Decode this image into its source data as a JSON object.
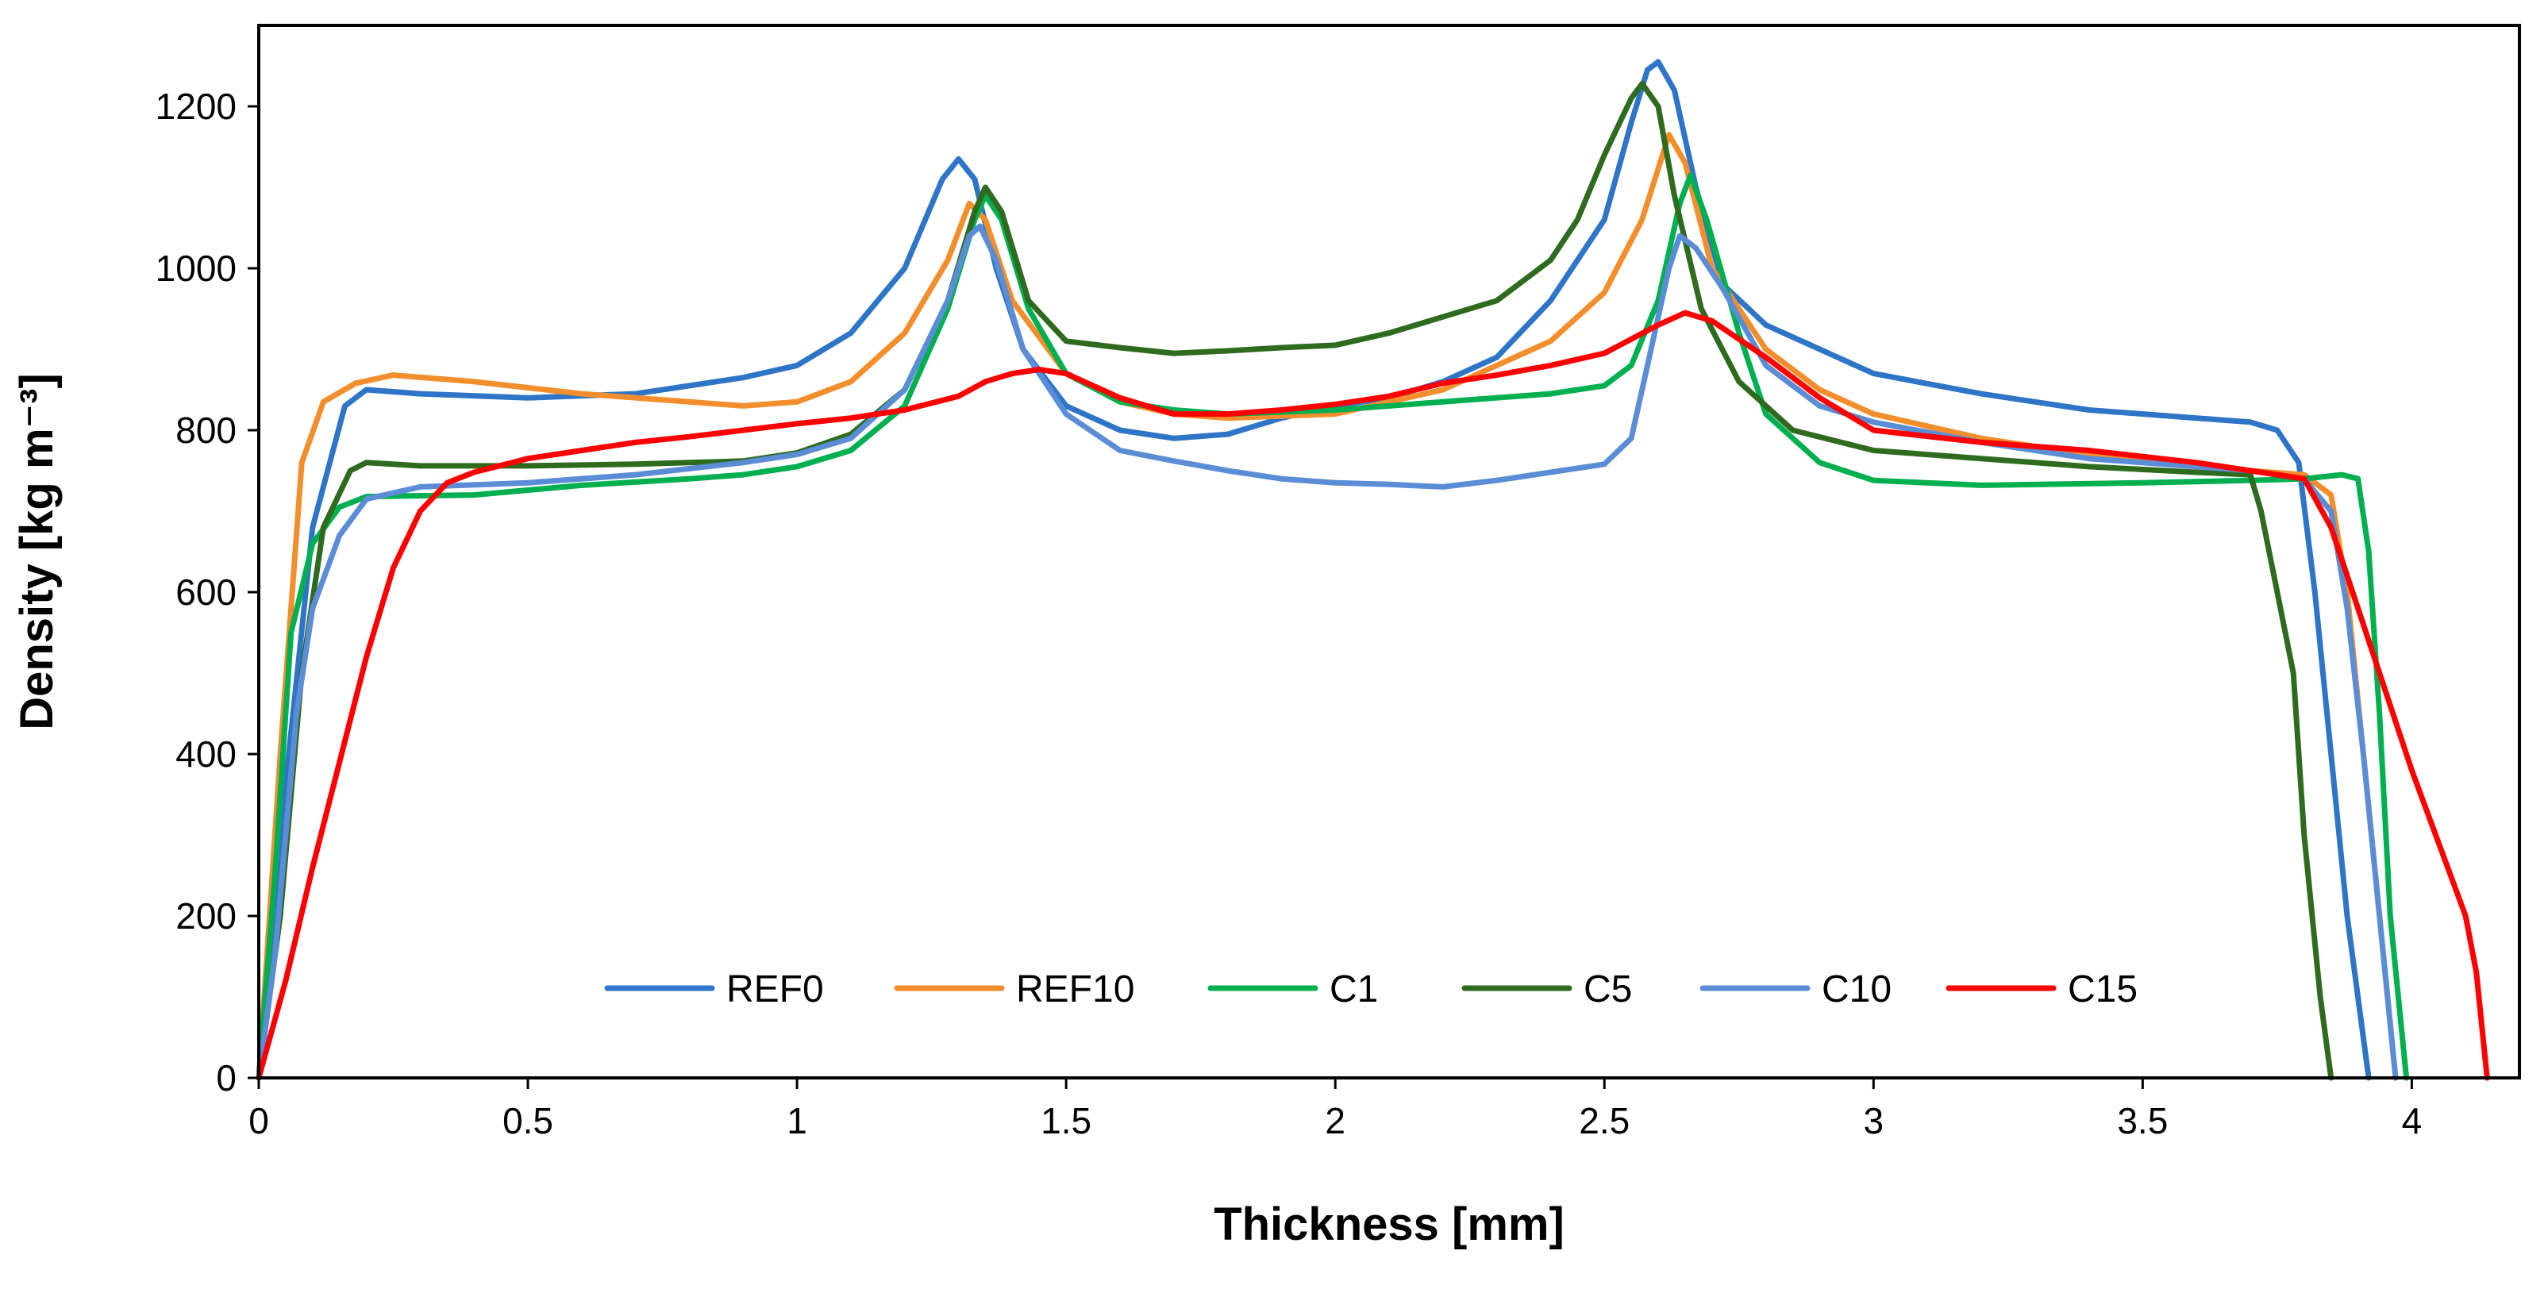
{
  "chart_data": {
    "type": "line",
    "title": "",
    "xlabel": "Thickness [mm]",
    "ylabel": "Density [kg m⁻³]",
    "xlim": [
      0,
      4.2
    ],
    "ylim": [
      0,
      1300
    ],
    "x_ticks": [
      0,
      0.5,
      1,
      1.5,
      2,
      2.5,
      3,
      3.5,
      4
    ],
    "x_tick_labels": [
      "0",
      "0.5",
      "1",
      "1.5",
      "2",
      "2.5",
      "3",
      "3.5",
      "4"
    ],
    "y_ticks": [
      0,
      200,
      400,
      600,
      800,
      1000,
      1200
    ],
    "y_tick_labels": [
      "0",
      "200",
      "400",
      "600",
      "800",
      "1000",
      "1200"
    ],
    "grid": false,
    "legend_position": "bottom-center",
    "series": [
      {
        "name": "REF0",
        "color": "#2E75C8",
        "points": [
          [
            0,
            0
          ],
          [
            0.04,
            300
          ],
          [
            0.1,
            680
          ],
          [
            0.16,
            830
          ],
          [
            0.2,
            850
          ],
          [
            0.3,
            845
          ],
          [
            0.5,
            840
          ],
          [
            0.7,
            845
          ],
          [
            0.9,
            865
          ],
          [
            1.0,
            880
          ],
          [
            1.1,
            920
          ],
          [
            1.2,
            1000
          ],
          [
            1.27,
            1110
          ],
          [
            1.3,
            1135
          ],
          [
            1.33,
            1110
          ],
          [
            1.37,
            1000
          ],
          [
            1.42,
            900
          ],
          [
            1.5,
            830
          ],
          [
            1.6,
            800
          ],
          [
            1.7,
            790
          ],
          [
            1.8,
            795
          ],
          [
            1.9,
            815
          ],
          [
            2.0,
            830
          ],
          [
            2.1,
            840
          ],
          [
            2.2,
            860
          ],
          [
            2.3,
            890
          ],
          [
            2.4,
            960
          ],
          [
            2.5,
            1060
          ],
          [
            2.55,
            1180
          ],
          [
            2.58,
            1245
          ],
          [
            2.6,
            1255
          ],
          [
            2.63,
            1220
          ],
          [
            2.67,
            1100
          ],
          [
            2.72,
            980
          ],
          [
            2.8,
            930
          ],
          [
            2.9,
            900
          ],
          [
            3.0,
            870
          ],
          [
            3.2,
            845
          ],
          [
            3.4,
            825
          ],
          [
            3.6,
            815
          ],
          [
            3.7,
            810
          ],
          [
            3.75,
            800
          ],
          [
            3.79,
            760
          ],
          [
            3.82,
            600
          ],
          [
            3.85,
            400
          ],
          [
            3.88,
            200
          ],
          [
            3.92,
            0
          ]
        ]
      },
      {
        "name": "REF10",
        "color": "#F28E2B",
        "points": [
          [
            0,
            0
          ],
          [
            0.04,
            400
          ],
          [
            0.08,
            760
          ],
          [
            0.12,
            835
          ],
          [
            0.18,
            858
          ],
          [
            0.25,
            868
          ],
          [
            0.4,
            860
          ],
          [
            0.6,
            845
          ],
          [
            0.8,
            835
          ],
          [
            0.9,
            830
          ],
          [
            1.0,
            835
          ],
          [
            1.1,
            860
          ],
          [
            1.2,
            920
          ],
          [
            1.28,
            1010
          ],
          [
            1.32,
            1080
          ],
          [
            1.35,
            1060
          ],
          [
            1.4,
            960
          ],
          [
            1.5,
            870
          ],
          [
            1.6,
            835
          ],
          [
            1.7,
            820
          ],
          [
            1.8,
            815
          ],
          [
            2.0,
            820
          ],
          [
            2.2,
            850
          ],
          [
            2.4,
            910
          ],
          [
            2.5,
            970
          ],
          [
            2.57,
            1060
          ],
          [
            2.62,
            1165
          ],
          [
            2.65,
            1130
          ],
          [
            2.7,
            1000
          ],
          [
            2.8,
            900
          ],
          [
            2.9,
            850
          ],
          [
            3.0,
            820
          ],
          [
            3.2,
            790
          ],
          [
            3.4,
            770
          ],
          [
            3.6,
            755
          ],
          [
            3.7,
            750
          ],
          [
            3.8,
            745
          ],
          [
            3.85,
            720
          ],
          [
            3.88,
            600
          ],
          [
            3.91,
            400
          ],
          [
            3.94,
            200
          ],
          [
            3.97,
            0
          ]
        ]
      },
      {
        "name": "C1",
        "color": "#00B050",
        "points": [
          [
            0,
            0
          ],
          [
            0.03,
            250
          ],
          [
            0.06,
            550
          ],
          [
            0.1,
            660
          ],
          [
            0.15,
            705
          ],
          [
            0.2,
            718
          ],
          [
            0.4,
            720
          ],
          [
            0.6,
            732
          ],
          [
            0.8,
            740
          ],
          [
            0.9,
            745
          ],
          [
            1.0,
            755
          ],
          [
            1.1,
            775
          ],
          [
            1.2,
            830
          ],
          [
            1.28,
            950
          ],
          [
            1.33,
            1060
          ],
          [
            1.35,
            1090
          ],
          [
            1.38,
            1060
          ],
          [
            1.43,
            950
          ],
          [
            1.5,
            870
          ],
          [
            1.6,
            835
          ],
          [
            1.7,
            825
          ],
          [
            1.8,
            820
          ],
          [
            2.0,
            825
          ],
          [
            2.2,
            835
          ],
          [
            2.4,
            845
          ],
          [
            2.5,
            855
          ],
          [
            2.55,
            880
          ],
          [
            2.6,
            960
          ],
          [
            2.64,
            1080
          ],
          [
            2.66,
            1115
          ],
          [
            2.69,
            1060
          ],
          [
            2.75,
            920
          ],
          [
            2.8,
            820
          ],
          [
            2.9,
            760
          ],
          [
            3.0,
            738
          ],
          [
            3.2,
            732
          ],
          [
            3.5,
            735
          ],
          [
            3.7,
            738
          ],
          [
            3.8,
            740
          ],
          [
            3.87,
            745
          ],
          [
            3.9,
            740
          ],
          [
            3.92,
            650
          ],
          [
            3.94,
            450
          ],
          [
            3.96,
            200
          ],
          [
            3.99,
            0
          ]
        ]
      },
      {
        "name": "C5",
        "color": "#2E6B1F",
        "points": [
          [
            0,
            0
          ],
          [
            0.04,
            200
          ],
          [
            0.08,
            500
          ],
          [
            0.12,
            680
          ],
          [
            0.17,
            750
          ],
          [
            0.2,
            760
          ],
          [
            0.3,
            756
          ],
          [
            0.5,
            756
          ],
          [
            0.7,
            758
          ],
          [
            0.9,
            762
          ],
          [
            1.0,
            772
          ],
          [
            1.1,
            795
          ],
          [
            1.2,
            850
          ],
          [
            1.28,
            960
          ],
          [
            1.33,
            1070
          ],
          [
            1.35,
            1100
          ],
          [
            1.38,
            1070
          ],
          [
            1.43,
            960
          ],
          [
            1.5,
            910
          ],
          [
            1.6,
            902
          ],
          [
            1.7,
            895
          ],
          [
            1.8,
            898
          ],
          [
            1.9,
            902
          ],
          [
            2.0,
            905
          ],
          [
            2.1,
            920
          ],
          [
            2.2,
            940
          ],
          [
            2.3,
            960
          ],
          [
            2.4,
            1010
          ],
          [
            2.45,
            1060
          ],
          [
            2.5,
            1140
          ],
          [
            2.55,
            1210
          ],
          [
            2.57,
            1228
          ],
          [
            2.6,
            1200
          ],
          [
            2.63,
            1090
          ],
          [
            2.68,
            950
          ],
          [
            2.75,
            860
          ],
          [
            2.85,
            800
          ],
          [
            3.0,
            775
          ],
          [
            3.2,
            765
          ],
          [
            3.4,
            755
          ],
          [
            3.6,
            748
          ],
          [
            3.7,
            745
          ],
          [
            3.72,
            700
          ],
          [
            3.75,
            600
          ],
          [
            3.78,
            500
          ],
          [
            3.8,
            300
          ],
          [
            3.83,
            100
          ],
          [
            3.85,
            0
          ]
        ]
      },
      {
        "name": "C10",
        "color": "#5B8DD6",
        "points": [
          [
            0,
            0
          ],
          [
            0.03,
            150
          ],
          [
            0.07,
            450
          ],
          [
            0.1,
            580
          ],
          [
            0.15,
            670
          ],
          [
            0.2,
            715
          ],
          [
            0.3,
            730
          ],
          [
            0.5,
            735
          ],
          [
            0.7,
            745
          ],
          [
            0.9,
            760
          ],
          [
            1.0,
            770
          ],
          [
            1.1,
            790
          ],
          [
            1.2,
            850
          ],
          [
            1.28,
            960
          ],
          [
            1.32,
            1040
          ],
          [
            1.34,
            1052
          ],
          [
            1.37,
            1010
          ],
          [
            1.42,
            900
          ],
          [
            1.5,
            820
          ],
          [
            1.6,
            775
          ],
          [
            1.7,
            762
          ],
          [
            1.8,
            750
          ],
          [
            1.9,
            740
          ],
          [
            2.0,
            735
          ],
          [
            2.1,
            733
          ],
          [
            2.2,
            730
          ],
          [
            2.3,
            738
          ],
          [
            2.4,
            748
          ],
          [
            2.5,
            758
          ],
          [
            2.55,
            790
          ],
          [
            2.58,
            880
          ],
          [
            2.62,
            1000
          ],
          [
            2.64,
            1040
          ],
          [
            2.67,
            1025
          ],
          [
            2.72,
            975
          ],
          [
            2.8,
            880
          ],
          [
            2.9,
            830
          ],
          [
            3.0,
            810
          ],
          [
            3.2,
            785
          ],
          [
            3.4,
            765
          ],
          [
            3.6,
            755
          ],
          [
            3.7,
            750
          ],
          [
            3.8,
            740
          ],
          [
            3.85,
            700
          ],
          [
            3.88,
            580
          ],
          [
            3.91,
            400
          ],
          [
            3.94,
            200
          ],
          [
            3.97,
            0
          ]
        ]
      },
      {
        "name": "C15",
        "color": "#FF0000",
        "points": [
          [
            0,
            0
          ],
          [
            0.05,
            120
          ],
          [
            0.1,
            260
          ],
          [
            0.15,
            390
          ],
          [
            0.2,
            520
          ],
          [
            0.25,
            630
          ],
          [
            0.3,
            700
          ],
          [
            0.35,
            735
          ],
          [
            0.4,
            748
          ],
          [
            0.5,
            765
          ],
          [
            0.6,
            775
          ],
          [
            0.7,
            785
          ],
          [
            0.8,
            792
          ],
          [
            0.9,
            800
          ],
          [
            1.0,
            808
          ],
          [
            1.1,
            815
          ],
          [
            1.2,
            825
          ],
          [
            1.3,
            842
          ],
          [
            1.35,
            860
          ],
          [
            1.4,
            870
          ],
          [
            1.45,
            875
          ],
          [
            1.5,
            870
          ],
          [
            1.6,
            840
          ],
          [
            1.7,
            820
          ],
          [
            1.8,
            820
          ],
          [
            1.9,
            825
          ],
          [
            2.0,
            832
          ],
          [
            2.1,
            842
          ],
          [
            2.2,
            858
          ],
          [
            2.3,
            868
          ],
          [
            2.4,
            880
          ],
          [
            2.5,
            895
          ],
          [
            2.6,
            930
          ],
          [
            2.65,
            945
          ],
          [
            2.7,
            935
          ],
          [
            2.8,
            890
          ],
          [
            2.9,
            840
          ],
          [
            3.0,
            800
          ],
          [
            3.2,
            785
          ],
          [
            3.4,
            775
          ],
          [
            3.6,
            760
          ],
          [
            3.7,
            750
          ],
          [
            3.8,
            740
          ],
          [
            3.85,
            680
          ],
          [
            3.9,
            580
          ],
          [
            3.95,
            480
          ],
          [
            4.0,
            380
          ],
          [
            4.05,
            290
          ],
          [
            4.1,
            200
          ],
          [
            4.12,
            130
          ],
          [
            4.14,
            0
          ]
        ]
      }
    ]
  }
}
